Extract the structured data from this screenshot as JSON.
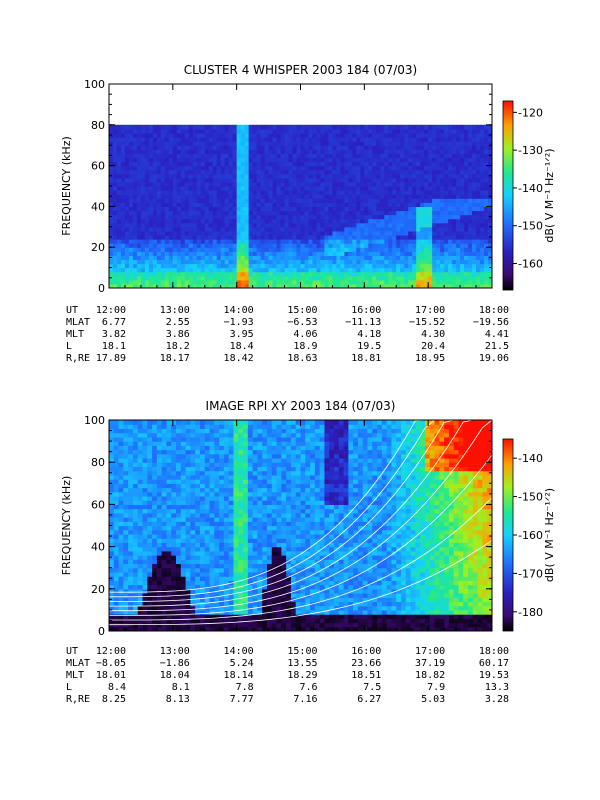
{
  "chart_data": [
    {
      "type": "heatmap",
      "title": "CLUSTER 4 WHISPER 2003 184 (07/03)",
      "ylabel": "FREQUENCY (kHz)",
      "ylim": [
        0,
        100
      ],
      "yticks": [
        "0",
        "20",
        "40",
        "60",
        "80",
        "100"
      ],
      "xticks": [
        "12:00",
        "13:00",
        "14:00",
        "15:00",
        "16:00",
        "17:00",
        "18:00"
      ],
      "data_freq_max": 80,
      "colorbar": {
        "label": "dB( V M⁻¹ Hz⁻¹ᐟ²)",
        "ticks": [
          "-120",
          "-130",
          "-140",
          "-150",
          "-160"
        ],
        "range": [
          -167,
          -117
        ]
      },
      "ephemeris": {
        "rows": [
          {
            "label": "UT",
            "values": [
              "12:00",
              "13:00",
              "14:00",
              "15:00",
              "16:00",
              "17:00",
              "18:00"
            ]
          },
          {
            "label": "MLAT",
            "values": [
              "6.77",
              "2.55",
              "−1.93",
              "−6.53",
              "−11.13",
              "−15.52",
              "−19.56"
            ]
          },
          {
            "label": "MLT",
            "values": [
              "3.82",
              "3.86",
              "3.95",
              "4.06",
              "4.18",
              "4.30",
              "4.41"
            ]
          },
          {
            "label": "L",
            "values": [
              "18.1",
              "18.2",
              "18.4",
              "18.9",
              "19.5",
              "20.4",
              "21.5"
            ]
          },
          {
            "label": "R,RE",
            "values": [
              "17.89",
              "18.17",
              "18.42",
              "18.63",
              "18.81",
              "18.95",
              "19.06"
            ]
          }
        ]
      },
      "colors": {
        "background": "#3a2fa8",
        "low": "#1a1a80",
        "mid": "#1fa3ff",
        "high": "#28e07a"
      }
    },
    {
      "type": "heatmap",
      "title": "IMAGE RPI XY 2003 184 (07/03)",
      "ylabel": "FREQUENCY (kHz)",
      "ylim": [
        0,
        100
      ],
      "yticks": [
        "0",
        "20",
        "40",
        "60",
        "80",
        "100"
      ],
      "xticks": [
        "12:00",
        "13:00",
        "14:00",
        "15:00",
        "16:00",
        "17:00",
        "18:00"
      ],
      "colorbar": {
        "label": "dB( V M⁻¹ Hz⁻¹ᐟ²)",
        "ticks": [
          "-140",
          "-150",
          "-160",
          "-170",
          "-180"
        ],
        "range": [
          -185,
          -135
        ]
      },
      "ephemeris": {
        "rows": [
          {
            "label": "UT",
            "values": [
              "12:00",
              "13:00",
              "14:00",
              "15:00",
              "16:00",
              "17:00",
              "18:00"
            ]
          },
          {
            "label": "MLAT",
            "values": [
              "−8.05",
              "−1.86",
              "5.24",
              "13.55",
              "23.66",
              "37.19",
              "60.17"
            ]
          },
          {
            "label": "MLT",
            "values": [
              "18.01",
              "18.04",
              "18.14",
              "18.29",
              "18.51",
              "18.82",
              "19.53"
            ]
          },
          {
            "label": "L",
            "values": [
              "8.4",
              "8.1",
              "7.8",
              "7.6",
              "7.5",
              "7.9",
              "13.3"
            ]
          },
          {
            "label": "R,RE",
            "values": [
              "8.25",
              "8.13",
              "7.77",
              "7.16",
              "6.27",
              "5.03",
              "3.28"
            ]
          }
        ]
      },
      "colors": {
        "background": "#2a5fd8",
        "low": "#000000",
        "mid": "#20c8e8",
        "high": "#ff2a00"
      }
    }
  ]
}
